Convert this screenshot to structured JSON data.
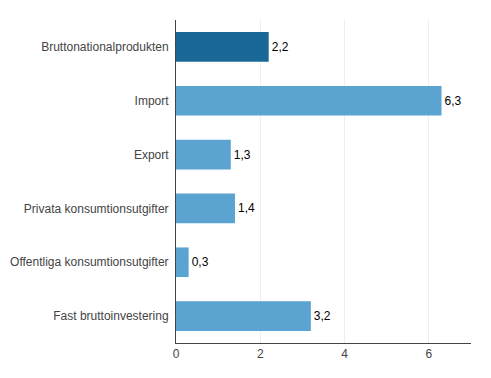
{
  "chart_data": {
    "type": "bar",
    "orientation": "horizontal",
    "categories": [
      "Fast bruttoinvestering",
      "Offentliga konsumtionsutgifter",
      "Privata konsumtionsutgifter",
      "Export",
      "Import",
      "Bruttonationalprodukten"
    ],
    "values": [
      3.2,
      0.3,
      1.4,
      1.3,
      6.3,
      2.2
    ],
    "value_labels": [
      "3,2",
      "0,3",
      "1,4",
      "1,3",
      "6,3",
      "2,2"
    ],
    "colors": [
      "#5ba3d0",
      "#5ba3d0",
      "#5ba3d0",
      "#5ba3d0",
      "#5ba3d0",
      "#1a6898"
    ],
    "data_labels": true,
    "xlim": [
      0,
      7
    ],
    "xticks": [
      0,
      2,
      4,
      6
    ],
    "grid": true
  }
}
